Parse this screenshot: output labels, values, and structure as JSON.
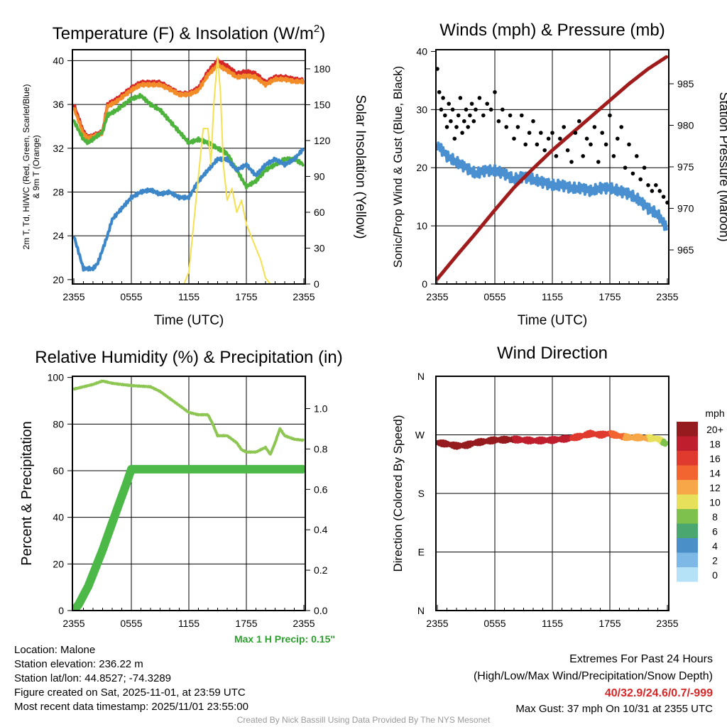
{
  "chart_data": [
    {
      "type": "line",
      "title": "Temperature (F) & Insolation (W/m²)",
      "title_main": "Temperature (F) & Insolation (W/m",
      "title_sup": "2",
      "title_end": ")",
      "xlabel": "Time (UTC)",
      "ylabel": "2m T, Td, HI/WC (Red, Green, Scarlet/Blue)",
      "ylabel2": "& 9m T (Orange)",
      "y2label": "Solar Insolation (Yellow)",
      "xticks": [
        "2355",
        "0555",
        "1155",
        "1755",
        "2355"
      ],
      "yticks": [
        20,
        24,
        28,
        32,
        36,
        40
      ],
      "y2ticks": [
        0,
        30,
        60,
        90,
        120,
        150,
        180
      ],
      "xlim": [
        0,
        24
      ],
      "ylim": [
        19.6,
        41
      ],
      "y2lim": [
        0,
        196
      ],
      "series": [
        {
          "name": "2m T",
          "color": "#d62728",
          "axis": "left",
          "x": [
            0,
            1,
            1.5,
            3,
            3.5,
            4.5,
            6,
            7,
            9,
            10,
            11,
            12,
            13,
            14,
            15,
            16,
            17,
            18,
            19,
            20,
            21,
            22,
            23,
            24
          ],
          "y": [
            36,
            33.5,
            33,
            33.5,
            36,
            36.5,
            37.5,
            38,
            38,
            37.5,
            37,
            37,
            37.5,
            39,
            40,
            39.5,
            38.8,
            39,
            38.8,
            38,
            38.5,
            38.5,
            38.3,
            38.2
          ]
        },
        {
          "name": "9m T",
          "color": "#f28c28",
          "axis": "left",
          "x": [
            0,
            1,
            1.5,
            3,
            3.5,
            4.5,
            6,
            7,
            9,
            10,
            11,
            12,
            13,
            14,
            15,
            16,
            17,
            18,
            19,
            20,
            21,
            22,
            23,
            24
          ],
          "y": [
            35.7,
            33.3,
            32.9,
            33.4,
            35.8,
            36.3,
            37.3,
            37.8,
            37.8,
            37.4,
            36.9,
            36.9,
            37.3,
            38.7,
            39.6,
            39.1,
            38.5,
            38.6,
            38.5,
            37.8,
            38.3,
            38.3,
            38.1,
            38.1
          ]
        },
        {
          "name": "Td",
          "color": "#4db33d",
          "axis": "left",
          "x": [
            0,
            1,
            1.5,
            3,
            3.5,
            4.5,
            6,
            7,
            8,
            9,
            10,
            11,
            12,
            13,
            14,
            15,
            16,
            17,
            18,
            19,
            20,
            21,
            22,
            23,
            24
          ],
          "y": [
            34.5,
            32.8,
            32.5,
            33.5,
            35,
            35.5,
            36.5,
            36.8,
            36,
            35.5,
            34.5,
            33.5,
            32.5,
            32.8,
            32.5,
            32,
            31.5,
            30,
            28.5,
            29,
            30,
            30.5,
            31,
            31,
            30.5
          ]
        },
        {
          "name": "HI/WC",
          "color": "#3d87c8",
          "axis": "left",
          "x": [
            0,
            0.5,
            1,
            2,
            2.5,
            3.5,
            4,
            5,
            6,
            7,
            8,
            9,
            10,
            11,
            12,
            13,
            14,
            15,
            16,
            17,
            18,
            19,
            20,
            21,
            22,
            23,
            24
          ],
          "y": [
            24,
            22.5,
            21,
            21,
            21.5,
            24,
            25.5,
            26.5,
            27.5,
            28,
            28.2,
            27.8,
            28,
            27.5,
            27.5,
            29,
            30,
            31,
            31,
            30,
            30.5,
            29.5,
            30.5,
            31,
            30.5,
            31,
            32
          ]
        },
        {
          "name": "Insolation",
          "color": "#f5e050",
          "axis": "right",
          "x": [
            0,
            11.5,
            12,
            12.5,
            13,
            13.5,
            14,
            14.3,
            14.6,
            15,
            15.3,
            15.6,
            16,
            16.5,
            17,
            17.5,
            18,
            18.5,
            19,
            19.5,
            20,
            20.5,
            24
          ],
          "y": [
            0,
            0,
            10,
            50,
            90,
            130,
            130,
            100,
            150,
            190,
            160,
            100,
            70,
            80,
            60,
            70,
            50,
            40,
            30,
            20,
            5,
            0,
            0
          ]
        }
      ]
    },
    {
      "type": "line",
      "title": "Winds (mph) & Pressure (mb)",
      "xlabel": "Time (UTC)",
      "ylabel": "Sonic/Prop Wind & Gust (Blue, Black)",
      "y2label": "Station Pressure (Maroon)",
      "xticks": [
        "2355",
        "0555",
        "1155",
        "1755",
        "2355"
      ],
      "yticks": [
        0,
        10,
        20,
        30,
        40
      ],
      "y2ticks": [
        965,
        970,
        975,
        980,
        985
      ],
      "xlim": [
        0,
        24
      ],
      "ylim": [
        0,
        40.3
      ],
      "y2lim": [
        960.9,
        989.1
      ],
      "series": [
        {
          "name": "Wind",
          "color": "#4a90d0",
          "axis": "left",
          "x": [
            0,
            1,
            2,
            3,
            4,
            5,
            6,
            7,
            8,
            9,
            10,
            11,
            12,
            13,
            14,
            15,
            16,
            17,
            18,
            19,
            20,
            21,
            22,
            23,
            24
          ],
          "y": [
            24,
            22,
            21,
            20,
            19,
            19.5,
            19.5,
            19,
            18,
            18.5,
            18,
            17.5,
            17,
            17,
            16.5,
            16.5,
            16,
            16.5,
            16.5,
            16,
            15.5,
            14.5,
            13,
            12,
            9.5
          ]
        },
        {
          "name": "Pressure",
          "color": "#a01c1c",
          "axis": "right",
          "x": [
            0,
            2,
            4,
            6,
            8,
            10,
            12,
            14,
            16,
            18,
            20,
            22,
            24
          ],
          "y": [
            961.5,
            964.3,
            967,
            969.8,
            972.5,
            974.8,
            977,
            979,
            981,
            983,
            985,
            986.8,
            988.3
          ]
        },
        {
          "name": "Gust",
          "color": "#000000",
          "axis": "left",
          "kind": "scatter",
          "x": [
            0,
            0.2,
            0.4,
            0.6,
            0.8,
            1,
            1.2,
            1.4,
            1.6,
            1.8,
            2,
            2.2,
            2.4,
            2.6,
            2.8,
            3,
            3.2,
            3.4,
            3.6,
            3.8,
            4,
            4.4,
            4.8,
            5.2,
            5.6,
            6,
            6.4,
            6.8,
            7.2,
            7.6,
            8,
            8.4,
            8.8,
            9.2,
            9.6,
            10,
            10.4,
            10.8,
            11.2,
            11.6,
            12,
            12.4,
            12.8,
            13.2,
            13.6,
            14,
            14.4,
            14.8,
            15.2,
            15.6,
            16,
            16.4,
            16.8,
            17.2,
            17.6,
            18,
            18.4,
            18.8,
            19.2,
            19.6,
            20,
            20.4,
            20.8,
            21.2,
            21.6,
            22,
            22.4,
            22.8,
            23.2,
            23.6,
            24
          ],
          "y": [
            37,
            33,
            30,
            32,
            29,
            27,
            31,
            28,
            30,
            25,
            27,
            29,
            32,
            26,
            28,
            30,
            27,
            29,
            31,
            28,
            30,
            32,
            29,
            31,
            30,
            33,
            28,
            30,
            27,
            29,
            25,
            27,
            29,
            24,
            26,
            28,
            24,
            26,
            23,
            25,
            26,
            22,
            25,
            27,
            23,
            21,
            26,
            28,
            22,
            25,
            24,
            27,
            21,
            26,
            24,
            29,
            22,
            25,
            27,
            20,
            24,
            19,
            22,
            18,
            20,
            17,
            16,
            17,
            16,
            15,
            14
          ]
        }
      ]
    },
    {
      "type": "line",
      "title": "Relative Humidity (%) & Precipitation (in)",
      "xlabel": "",
      "ylabel": "Percent & Precipitation",
      "xticks": [
        "2355",
        "0555",
        "1155",
        "1755",
        "2355"
      ],
      "yticks": [
        0,
        20,
        40,
        60,
        80,
        100
      ],
      "y2ticks": [
        "0.0",
        "0.2",
        "0.4",
        "0.6",
        "0.8",
        "1.0"
      ],
      "xlim": [
        0,
        24
      ],
      "ylim": [
        0,
        100.5
      ],
      "y2lim": [
        0,
        1.16
      ],
      "annotation": "Max 1 H Precip: 0.15\"",
      "series": [
        {
          "name": "RH",
          "color": "#8dc653",
          "axis": "left",
          "x": [
            0,
            2,
            3,
            4,
            6,
            8,
            9,
            10,
            11,
            12,
            13,
            14,
            14.5,
            15,
            16,
            17,
            17.5,
            18,
            19,
            20,
            20.5,
            21,
            21.5,
            22,
            23,
            24
          ],
          "y": [
            95,
            97,
            98.5,
            97.5,
            96.5,
            96,
            94,
            91,
            88,
            85,
            84,
            84,
            80,
            75,
            75,
            72,
            69,
            68,
            68,
            70,
            67,
            72,
            78,
            75,
            73.5,
            73
          ]
        },
        {
          "name": "Precipitation",
          "color": "#4cb848",
          "axis": "right",
          "x": [
            0,
            0.5,
            1.5,
            3,
            4.5,
            5.5,
            6,
            24
          ],
          "y": [
            0,
            0.03,
            0.12,
            0.3,
            0.5,
            0.63,
            0.7,
            0.7
          ]
        }
      ]
    },
    {
      "type": "scatter",
      "title": "Wind Direction",
      "ylabel": "Direction (Colored By Speed)",
      "xticks": [
        "2355",
        "0555",
        "1155",
        "1755",
        "2355"
      ],
      "yticks": [
        "N",
        "E",
        "S",
        "W",
        "N"
      ],
      "xlim": [
        0,
        24
      ],
      "ylim": [
        0,
        360
      ],
      "x": [
        0,
        1,
        2,
        3,
        4,
        6,
        8,
        10,
        12,
        14,
        15,
        16,
        17,
        18,
        19,
        20,
        21,
        22,
        23,
        24
      ],
      "y": [
        258,
        256,
        253,
        254,
        258,
        262,
        263,
        261,
        262,
        265,
        268,
        272,
        270,
        272,
        268,
        266,
        266,
        265,
        264,
        255
      ],
      "speed": [
        20,
        20,
        20,
        20,
        20,
        20,
        20,
        19,
        18,
        18,
        17,
        16,
        17,
        16,
        15,
        13,
        13,
        12,
        11,
        9
      ],
      "legend_title": "mph",
      "legend_labels": [
        "20+",
        "18",
        "16",
        "14",
        "12",
        "10",
        "8",
        "6",
        "4",
        "2",
        "0"
      ],
      "legend_colors": [
        "#951b1e",
        "#be1e2d",
        "#e03a2f",
        "#f26530",
        "#f7a748",
        "#e6e05a",
        "#7ec24d",
        "#4aa76f",
        "#4a8fc8",
        "#7db8e6",
        "#b6e2f8"
      ]
    }
  ],
  "info": {
    "location": "Location: Malone",
    "elevation": "Station elevation: 236.22 m",
    "latlon": "Station lat/lon: 44.8527; -74.3289",
    "created": "Figure created on Sat, 2025-11-01, at 23:59 UTC",
    "recent": "Most recent data timestamp: 2025/11/01 23:55:00"
  },
  "extremes": {
    "title": "Extremes For Past 24 Hours",
    "subtitle": "(High/Low/Max Wind/Precipitation/Snow Depth)",
    "values": "40/32.9/24.6/0.7/-999",
    "gust": "Max Gust: 37 mph On 10/31 at 2355 UTC"
  },
  "credit": "Created By Nick Bassill Using Data Provided By The NYS Mesonet"
}
